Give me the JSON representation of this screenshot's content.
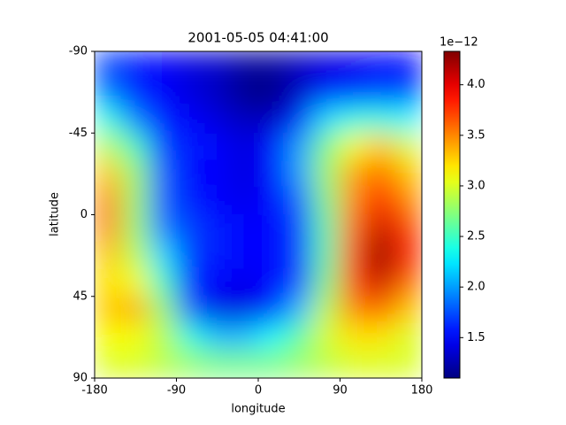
{
  "chart_data": {
    "type": "heatmap",
    "title": "2001-05-05 04:41:00",
    "x_label": "longitude",
    "y_label": "latitude",
    "x": [
      -165,
      -135,
      -105,
      -75,
      -45,
      -15,
      15,
      45,
      75,
      105,
      135,
      165
    ],
    "y": [
      -82.5,
      -67.5,
      -52.5,
      -37.5,
      -22.5,
      -7.5,
      7.5,
      22.5,
      37.5,
      52.5,
      67.5,
      82.5
    ],
    "values": [
      [
        1.7,
        1.6,
        1.5,
        1.4,
        1.35,
        1.2,
        1.2,
        1.3,
        1.4,
        1.45,
        1.5,
        1.5
      ],
      [
        1.9,
        1.6,
        1.5,
        1.4,
        1.3,
        1.15,
        1.1,
        1.3,
        1.5,
        1.6,
        1.7,
        1.7
      ],
      [
        2.4,
        1.9,
        1.6,
        1.5,
        1.4,
        1.3,
        1.3,
        1.6,
        2.2,
        2.4,
        2.4,
        2.3
      ],
      [
        2.9,
        2.5,
        1.7,
        1.6,
        1.5,
        1.4,
        1.5,
        2.0,
        2.7,
        3.1,
        3.3,
        3.0
      ],
      [
        3.3,
        2.8,
        1.8,
        1.5,
        1.5,
        1.4,
        1.5,
        2.0,
        2.8,
        3.4,
        3.6,
        3.3
      ],
      [
        3.5,
        2.8,
        1.8,
        1.6,
        1.5,
        1.45,
        1.5,
        1.8,
        2.7,
        3.5,
        3.9,
        3.5
      ],
      [
        3.5,
        2.8,
        1.9,
        1.7,
        1.6,
        1.5,
        1.5,
        1.7,
        2.6,
        3.6,
        4.1,
        3.7
      ],
      [
        3.3,
        2.9,
        2.2,
        1.7,
        1.6,
        1.5,
        1.5,
        1.7,
        2.6,
        3.7,
        4.3,
        3.8
      ],
      [
        3.2,
        3.1,
        2.5,
        1.6,
        1.5,
        1.45,
        1.5,
        1.7,
        2.7,
        3.7,
        4.1,
        3.6
      ],
      [
        3.3,
        3.4,
        2.8,
        1.8,
        1.4,
        1.4,
        1.6,
        2.1,
        2.9,
        3.5,
        3.6,
        3.3
      ],
      [
        3.1,
        3.1,
        2.9,
        2.4,
        2.1,
        2.1,
        2.3,
        2.6,
        3.0,
        3.2,
        3.2,
        3.0
      ],
      [
        3.0,
        3.0,
        2.9,
        2.8,
        2.7,
        2.7,
        2.7,
        2.8,
        2.9,
        3.0,
        3.0,
        3.0
      ]
    ],
    "xlim": [
      -180,
      180
    ],
    "xticks": [
      -180,
      -90,
      0,
      90,
      180
    ],
    "ylim": [
      90,
      -90
    ],
    "yticks": [
      -90,
      -45,
      0,
      45,
      90
    ],
    "colormap": "jet",
    "clim": [
      1.1,
      4.33
    ],
    "cticks": [
      1.5,
      {
        "value": 2,
        "label": "2.0"
      },
      2.5,
      {
        "value": 3,
        "label": "3.0"
      },
      3.5,
      {
        "value": 4,
        "label": "4.0"
      }
    ],
    "c_offset_label": "1e−12"
  }
}
